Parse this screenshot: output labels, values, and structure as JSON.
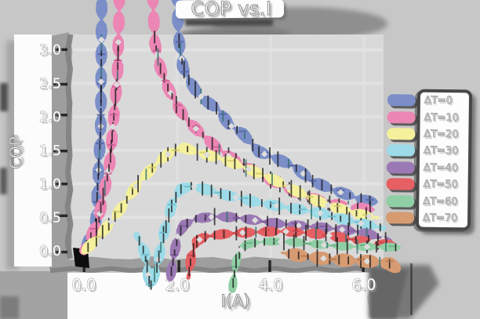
{
  "title": "COP vs.I",
  "axes": {
    "xlabel": "I(A)",
    "ylabel": "COP",
    "x_ticks": [
      {
        "value": 0,
        "label": "0.0"
      },
      {
        "value": 2,
        "label": "2.0"
      },
      {
        "value": 4,
        "label": "4.0"
      },
      {
        "value": 6,
        "label": "6.0"
      }
    ],
    "y_ticks": [
      {
        "value": 3.0,
        "label": "3.0"
      },
      {
        "value": 2.5,
        "label": "2.5"
      },
      {
        "value": 2.0,
        "label": "2.0"
      },
      {
        "value": 1.5,
        "label": "1.5"
      },
      {
        "value": 1.0,
        "label": "1.0"
      },
      {
        "value": 0.5,
        "label": "0.5"
      },
      {
        "value": 0.0,
        "label": "0.0"
      }
    ],
    "xlim": [
      0,
      6.9
    ],
    "ylim": [
      0,
      3.2
    ],
    "grid": true
  },
  "legend": {
    "position": "right",
    "items": [
      {
        "label": "ΔT=0",
        "color": "#7b8ec8"
      },
      {
        "label": "ΔT=10",
        "color": "#ec86b4"
      },
      {
        "label": "ΔT=20",
        "color": "#f4f09c"
      },
      {
        "label": "ΔT=30",
        "color": "#9cdbe7"
      },
      {
        "label": "ΔT=40",
        "color": "#9b79b4"
      },
      {
        "label": "ΔT=50",
        "color": "#e65f62"
      },
      {
        "label": "ΔT=60",
        "color": "#90cfa5"
      },
      {
        "label": "ΔT=70",
        "color": "#d79b72"
      }
    ]
  },
  "chart_data": {
    "type": "line",
    "title": "COP vs.I",
    "xlabel": "I(A)",
    "ylabel": "COP",
    "style": "xkcd-sketch ribbons with error bars and diamond markers",
    "error_bars": true,
    "series": [
      {
        "name": "ΔT=0",
        "color": "#7b8ec8",
        "dark": "#4d5f9e",
        "points": [
          [
            0,
            0
          ],
          [
            0.25,
            0.4
          ],
          [
            0.36,
            1.8
          ],
          [
            0.39,
            4.4
          ],
          [
            1.95,
            4.4
          ],
          [
            2.03,
            3.2
          ],
          [
            2.12,
            2.75
          ],
          [
            2.25,
            2.55
          ],
          [
            2.42,
            2.35
          ],
          [
            2.6,
            2.22
          ],
          [
            2.9,
            2.08
          ],
          [
            3.1,
            1.88
          ],
          [
            3.4,
            1.76
          ],
          [
            3.75,
            1.5
          ],
          [
            4.1,
            1.4
          ],
          [
            4.5,
            1.26
          ],
          [
            4.9,
            1.02
          ],
          [
            5.3,
            0.9
          ],
          [
            5.7,
            0.82
          ],
          [
            6.0,
            0.76
          ],
          [
            6.25,
            0.75
          ]
        ]
      },
      {
        "name": "ΔT=10",
        "color": "#ec86b4",
        "dark": "#c85a92",
        "points": [
          [
            0,
            0
          ],
          [
            0.3,
            0.4
          ],
          [
            0.55,
            1.3
          ],
          [
            0.72,
            2.6
          ],
          [
            0.78,
            4.4
          ],
          [
            1.44,
            4.4
          ],
          [
            1.52,
            3.1
          ],
          [
            1.64,
            2.7
          ],
          [
            1.8,
            2.42
          ],
          [
            1.98,
            2.18
          ],
          [
            2.2,
            1.97
          ],
          [
            2.5,
            1.78
          ],
          [
            2.85,
            1.55
          ],
          [
            3.2,
            1.36
          ],
          [
            3.6,
            1.18
          ],
          [
            4.0,
            1.04
          ],
          [
            4.4,
            0.92
          ],
          [
            4.8,
            0.82
          ],
          [
            5.2,
            0.74
          ],
          [
            5.6,
            0.67
          ],
          [
            6.0,
            0.62
          ],
          [
            6.2,
            0.6
          ]
        ]
      },
      {
        "name": "ΔT=20",
        "color": "#f4f09c",
        "dark": "#cfc96a",
        "points": [
          [
            0,
            0
          ],
          [
            0.4,
            0.3
          ],
          [
            0.8,
            0.64
          ],
          [
            1.2,
            1.02
          ],
          [
            1.6,
            1.32
          ],
          [
            1.9,
            1.5
          ],
          [
            2.15,
            1.55
          ],
          [
            2.5,
            1.48
          ],
          [
            2.9,
            1.4
          ],
          [
            3.3,
            1.28
          ],
          [
            3.7,
            1.15
          ],
          [
            4.1,
            1.03
          ],
          [
            4.5,
            0.9
          ],
          [
            4.9,
            0.79
          ],
          [
            5.3,
            0.69
          ],
          [
            5.7,
            0.6
          ],
          [
            6.05,
            0.52
          ],
          [
            6.3,
            0.48
          ]
        ]
      },
      {
        "name": "ΔT=30",
        "color": "#9cdbe7",
        "dark": "#6fb9cc",
        "points": [
          [
            1.13,
            0.22
          ],
          [
            1.3,
            -0.05
          ],
          [
            1.42,
            -0.55
          ],
          [
            1.55,
            -0.25
          ],
          [
            1.72,
            0.3
          ],
          [
            1.9,
            0.7
          ],
          [
            2.08,
            0.9
          ],
          [
            2.3,
            0.95
          ],
          [
            2.6,
            0.91
          ],
          [
            3.0,
            0.85
          ],
          [
            3.5,
            0.78
          ],
          [
            4.0,
            0.7
          ],
          [
            4.5,
            0.62
          ],
          [
            5.0,
            0.55
          ],
          [
            5.5,
            0.47
          ],
          [
            6.0,
            0.41
          ],
          [
            6.42,
            0.36
          ]
        ]
      },
      {
        "name": "ΔT=40",
        "color": "#9b79b4",
        "dark": "#7a5596",
        "points": [
          [
            1.85,
            -0.38
          ],
          [
            1.92,
            -0.1
          ],
          [
            2.0,
            0.22
          ],
          [
            2.15,
            0.38
          ],
          [
            2.4,
            0.46
          ],
          [
            2.8,
            0.49
          ],
          [
            3.2,
            0.49
          ],
          [
            3.6,
            0.47
          ],
          [
            4.0,
            0.44
          ],
          [
            4.4,
            0.41
          ],
          [
            4.8,
            0.37
          ],
          [
            5.2,
            0.33
          ],
          [
            5.6,
            0.29
          ],
          [
            6.0,
            0.25
          ],
          [
            6.3,
            0.21
          ],
          [
            6.52,
            0.13
          ]
        ]
      },
      {
        "name": "ΔT=50",
        "color": "#e65f62",
        "dark": "#c04449",
        "points": [
          [
            2.24,
            -0.42
          ],
          [
            2.3,
            -0.1
          ],
          [
            2.42,
            0.14
          ],
          [
            2.6,
            0.22
          ],
          [
            3.0,
            0.27
          ],
          [
            3.4,
            0.29
          ],
          [
            3.9,
            0.29
          ],
          [
            4.4,
            0.27
          ],
          [
            4.9,
            0.24
          ],
          [
            5.4,
            0.21
          ],
          [
            5.9,
            0.17
          ],
          [
            6.3,
            0.13
          ],
          [
            6.6,
            0.1
          ]
        ]
      },
      {
        "name": "ΔT=60",
        "color": "#90cfa5",
        "dark": "#67ab82",
        "points": [
          [
            3.18,
            -0.55
          ],
          [
            3.26,
            -0.15
          ],
          [
            3.38,
            0.05
          ],
          [
            3.6,
            0.1
          ],
          [
            4.0,
            0.12
          ],
          [
            4.5,
            0.12
          ],
          [
            5.0,
            0.11
          ],
          [
            5.5,
            0.09
          ],
          [
            6.0,
            0.07
          ],
          [
            6.4,
            0.05
          ],
          [
            6.75,
            0.03
          ]
        ]
      },
      {
        "name": "ΔT=70",
        "color": "#d79b72",
        "dark": "#b5764e",
        "points": [
          [
            4.25,
            -0.05
          ],
          [
            4.6,
            -0.08
          ],
          [
            5.0,
            -0.1
          ],
          [
            5.4,
            -0.11
          ],
          [
            5.8,
            -0.13
          ],
          [
            6.2,
            -0.15
          ],
          [
            6.55,
            -0.2
          ],
          [
            6.7,
            -0.28
          ]
        ]
      }
    ]
  },
  "colors": {
    "figure_bg": "#c7c7c7",
    "plot_bg": "#d9d9d9",
    "grid": "#e4e4e4",
    "band": "#fcfcfc",
    "spine": "#9e9e9e",
    "spine_dark": "#818181",
    "tick": "#141414",
    "text_fill": "#ffffff",
    "text_outline": "#979797",
    "shadow": "#7d7d7d"
  }
}
